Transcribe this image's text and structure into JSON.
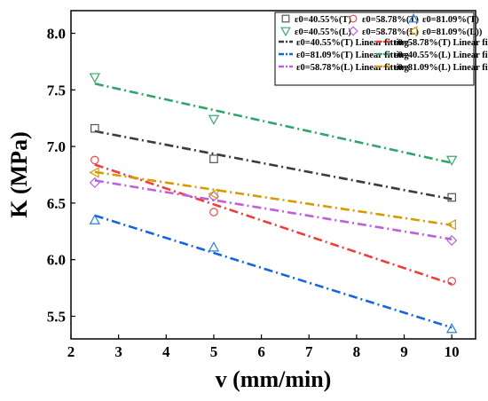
{
  "chart_data": {
    "type": "scatter",
    "xlabel": "v (mm/min)",
    "ylabel": "K (MPa)",
    "xlim": [
      2,
      10.5
    ],
    "ylim": [
      5.3,
      8.2
    ],
    "xticks": [
      "2",
      "3",
      "4",
      "5",
      "6",
      "7",
      "8",
      "9",
      "10"
    ],
    "yticks": [
      "5.5",
      "6.0",
      "6.5",
      "7.0",
      "7.5",
      "8.0"
    ],
    "grid": false,
    "legend_position": "top-right",
    "series": [
      {
        "name": "ε0=40.55%(T)",
        "marker": "square",
        "color": "#555555",
        "x": [
          2.5,
          5,
          10
        ],
        "y": [
          7.16,
          6.89,
          6.55
        ]
      },
      {
        "name": "ε0=58.78%(T)",
        "marker": "circle",
        "color": "#e8474a",
        "x": [
          2.5,
          5,
          10
        ],
        "y": [
          6.88,
          6.42,
          5.81
        ]
      },
      {
        "name": "ε0=81.09%(T)",
        "marker": "triangle-up",
        "color": "#2d7fd1",
        "x": [
          2.5,
          5,
          10
        ],
        "y": [
          6.35,
          6.11,
          5.39
        ]
      },
      {
        "name": "ε0=40.55%(L)",
        "marker": "triangle-down",
        "color": "#3aa66e",
        "x": [
          2.5,
          5,
          10
        ],
        "y": [
          7.61,
          7.24,
          6.88
        ]
      },
      {
        "name": "ε0=58.78%(L)",
        "marker": "diamond",
        "color": "#b067d6",
        "x": [
          2.5,
          5,
          10
        ],
        "y": [
          6.68,
          6.56,
          6.17
        ]
      },
      {
        "name": "ε0=81.09%(L))",
        "marker": "triangle-left",
        "color": "#d39a0c",
        "x": [
          2.5,
          5,
          10
        ],
        "y": [
          6.77,
          6.58,
          6.31
        ]
      }
    ],
    "fits": [
      {
        "name": "ε0=40.55%(T) Linear fitting",
        "color": "#3b3b3b",
        "x": [
          2.5,
          10
        ],
        "y": [
          7.135,
          6.535
        ]
      },
      {
        "name": "ε0=58.78%(T) Linear fitting",
        "color": "#f03c3c",
        "x": [
          2.5,
          10
        ],
        "y": [
          6.84,
          5.785
        ]
      },
      {
        "name": "ε0=81.09%(T) Linear fitting",
        "color": "#1565e0",
        "x": [
          2.5,
          10
        ],
        "y": [
          6.39,
          5.4
        ]
      },
      {
        "name": "ε0=40.55%(L) Linear fitting",
        "color": "#2fa56a",
        "x": [
          2.5,
          10
        ],
        "y": [
          7.555,
          6.855
        ]
      },
      {
        "name": "ε0=58.78%(L) Linear fitting",
        "color": "#c060dc",
        "x": [
          2.5,
          10
        ],
        "y": [
          6.7,
          6.18
        ]
      },
      {
        "name": "ε0=81.09%(L) Linear fitting",
        "color": "#d99a00",
        "x": [
          2.5,
          10
        ],
        "y": [
          6.775,
          6.305
        ]
      }
    ]
  }
}
